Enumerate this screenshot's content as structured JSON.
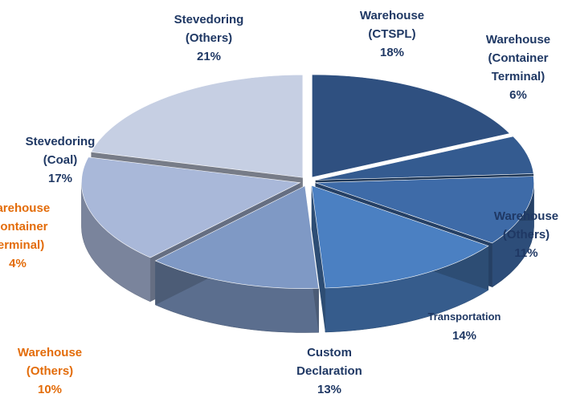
{
  "chart_data": [
    {
      "type": "pie",
      "categories": [
        "Warehouse (CTSPL)",
        "Warehouse (Container Terminal)",
        "Warehouse (Others)",
        "Transportation",
        "Custom Declaration",
        "Stevedoring (Coal)",
        "Stevedoring (Others)"
      ],
      "values": [
        18,
        6,
        11,
        14,
        13,
        17,
        21
      ],
      "value_labels": [
        "18%",
        "6%",
        "11%",
        "14%",
        "13%",
        "17%",
        "21%"
      ],
      "colors": [
        "#2f5080",
        "#345b90",
        "#3e6ba8",
        "#4b80c2",
        "#7f99c5",
        "#a9b8d9",
        "#c6cfe3"
      ],
      "label_color": "#1f3864"
    },
    {
      "type": "pie",
      "categories": [
        "Warehouse (Container Terminal)",
        "Warehouse (Others)"
      ],
      "values": [
        4,
        10
      ],
      "value_labels": [
        "4%",
        "10%"
      ],
      "label_color": "#e36c0a"
    }
  ]
}
